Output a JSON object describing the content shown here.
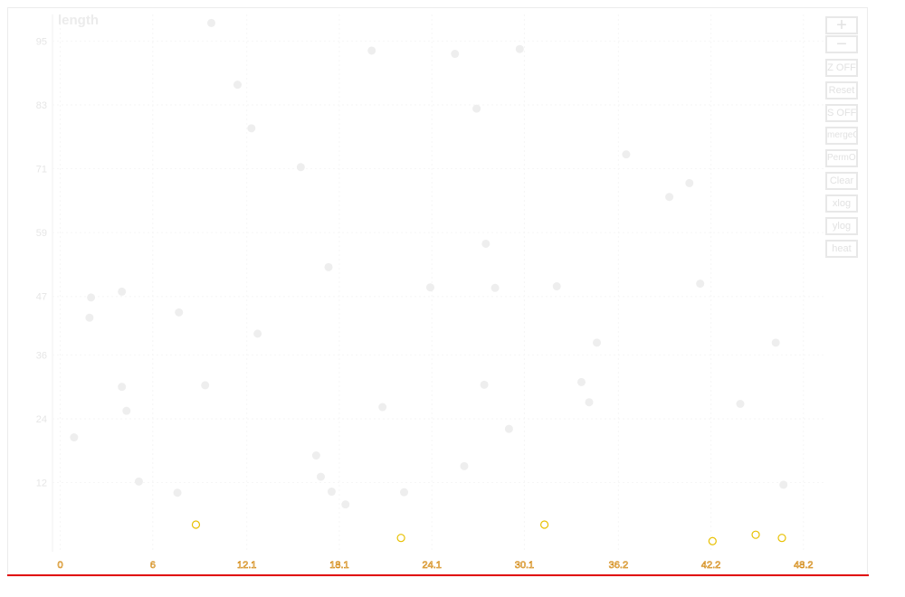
{
  "chart_data": {
    "type": "scatter",
    "ylabel": "length",
    "xlabel": "",
    "xlim": [
      -0.5,
      49.5
    ],
    "ylim": [
      -1,
      100
    ],
    "x_ticks": [
      "0",
      "6",
      "12.1",
      "18.1",
      "24.1",
      "30.1",
      "36.2",
      "42.2",
      "48.2"
    ],
    "x_tick_values": [
      0,
      6,
      12.1,
      18.1,
      24.1,
      30.1,
      36.2,
      42.2,
      48.2
    ],
    "y_ticks": [
      "12",
      "24",
      "36",
      "47",
      "59",
      "71",
      "83",
      "95"
    ],
    "y_tick_values": [
      12,
      24,
      36,
      47,
      59,
      71,
      83,
      95
    ],
    "grid": true,
    "point_color": "#eeeeee",
    "highlight_color": "#e8c000",
    "points": [
      {
        "x": 0.9,
        "y": 20.5
      },
      {
        "x": 1.9,
        "y": 43
      },
      {
        "x": 2.0,
        "y": 46.8
      },
      {
        "x": 4.0,
        "y": 30
      },
      {
        "x": 4.0,
        "y": 47.9
      },
      {
        "x": 4.3,
        "y": 25.5
      },
      {
        "x": 5.1,
        "y": 12.2
      },
      {
        "x": 7.6,
        "y": 10.1
      },
      {
        "x": 7.7,
        "y": 44
      },
      {
        "x": 9.4,
        "y": 30.3
      },
      {
        "x": 9.8,
        "y": 98.4
      },
      {
        "x": 11.5,
        "y": 86.8
      },
      {
        "x": 12.4,
        "y": 78.6
      },
      {
        "x": 12.8,
        "y": 40
      },
      {
        "x": 15.6,
        "y": 71.3
      },
      {
        "x": 16.6,
        "y": 17.1
      },
      {
        "x": 16.9,
        "y": 13.1
      },
      {
        "x": 17.4,
        "y": 52.5
      },
      {
        "x": 17.6,
        "y": 10.3
      },
      {
        "x": 18.5,
        "y": 7.9
      },
      {
        "x": 20.2,
        "y": 93.2
      },
      {
        "x": 20.9,
        "y": 26.2
      },
      {
        "x": 22.3,
        "y": 10.2
      },
      {
        "x": 24.0,
        "y": 48.7
      },
      {
        "x": 25.6,
        "y": 92.6
      },
      {
        "x": 26.2,
        "y": 15.1
      },
      {
        "x": 27.0,
        "y": 82.3
      },
      {
        "x": 27.5,
        "y": 30.4
      },
      {
        "x": 27.6,
        "y": 56.9
      },
      {
        "x": 28.2,
        "y": 48.6
      },
      {
        "x": 29.1,
        "y": 22.1
      },
      {
        "x": 29.8,
        "y": 93.5
      },
      {
        "x": 32.2,
        "y": 48.9
      },
      {
        "x": 33.8,
        "y": 30.9
      },
      {
        "x": 34.3,
        "y": 27.1
      },
      {
        "x": 34.8,
        "y": 38.3
      },
      {
        "x": 36.7,
        "y": 73.7
      },
      {
        "x": 39.5,
        "y": 65.7
      },
      {
        "x": 40.8,
        "y": 68.3
      },
      {
        "x": 41.5,
        "y": 49.4
      },
      {
        "x": 44.1,
        "y": 26.8
      },
      {
        "x": 46.4,
        "y": 38.3
      },
      {
        "x": 46.9,
        "y": 11.6
      }
    ],
    "highlights": [
      {
        "x": 8.8,
        "y": 4.1
      },
      {
        "x": 22.1,
        "y": 1.6
      },
      {
        "x": 31.4,
        "y": 4.1
      },
      {
        "x": 42.3,
        "y": 1.0
      },
      {
        "x": 45.1,
        "y": 2.2
      },
      {
        "x": 46.8,
        "y": 1.6
      }
    ]
  },
  "toolbar": {
    "zoom_in": "+",
    "zoom_out": "−",
    "z_off": "Z OFF",
    "reset": "Reset",
    "s_off": "S OFF",
    "merge_on": "mergeON",
    "perm_on": "PermON",
    "clear": "Clear",
    "xlog": "xlog",
    "ylog": "ylog",
    "heat": "heat"
  }
}
